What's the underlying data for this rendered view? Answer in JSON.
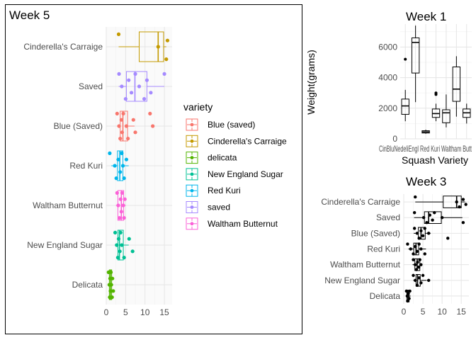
{
  "chart_data": [
    {
      "id": "week5",
      "type": "boxplot",
      "title": "Week 5",
      "orientation": "horizontal",
      "xlabel": "",
      "ylabel": "",
      "xlim": [
        0,
        17
      ],
      "x_ticks": [
        0,
        5,
        10,
        15
      ],
      "grid": true,
      "categories": [
        "Cinderella's Carraige",
        "Saved",
        "Blue (Saved)",
        "Red Kuri",
        "Waltham Butternut",
        "New England Sugar",
        "Delicata"
      ],
      "legend": {
        "title": "variety",
        "placement": "right",
        "entries": [
          {
            "label": "Blue (saved)",
            "color": "#F8766D"
          },
          {
            "label": "Cinderella's Carraige",
            "color": "#C49A00"
          },
          {
            "label": "delicata",
            "color": "#53B400"
          },
          {
            "label": "New England Sugar",
            "color": "#00C094"
          },
          {
            "label": "Red Kuri",
            "color": "#00B6EB"
          },
          {
            "label": "saved",
            "color": "#A58AFF"
          },
          {
            "label": "Waltham Butternut",
            "color": "#FB61D7"
          }
        ]
      },
      "series": [
        {
          "category": "Cinderella's Carraige",
          "color": "#C49A00",
          "q1": 8.5,
          "median": 13.4,
          "q3": 14.8,
          "whisker_low": 3.2,
          "whisker_high": 15.5,
          "points": [
            3.2,
            13.4,
            15.5,
            15.8
          ]
        },
        {
          "category": "Saved",
          "color": "#A58AFF",
          "q1": 5.2,
          "median": 7.4,
          "q3": 10.5,
          "whisker_low": 3.2,
          "whisker_high": 15.0,
          "points": [
            3.3,
            4.0,
            5.0,
            5.8,
            6.5,
            7.5,
            8.5,
            9.8,
            10.5,
            11.5,
            15.0
          ]
        },
        {
          "category": "Blue (Saved)",
          "color": "#F8766D",
          "q1": 3.6,
          "median": 4.3,
          "q3": 5.5,
          "whisker_low": 2.8,
          "whisker_high": 7.3,
          "points": [
            2.8,
            3.3,
            3.6,
            3.9,
            4.1,
            4.4,
            5.2,
            5.6,
            7.0,
            7.5,
            11.3,
            12.0
          ]
        },
        {
          "category": "Red Kuri",
          "color": "#00B6EB",
          "q1": 2.9,
          "median": 3.5,
          "q3": 4.3,
          "whisker_low": 1.3,
          "whisker_high": 5.8,
          "points": [
            0.9,
            2.2,
            2.6,
            3.1,
            3.6,
            4.0,
            4.3,
            4.6,
            5.2
          ]
        },
        {
          "category": "Waltham Butternut",
          "color": "#FB61D7",
          "q1": 3.0,
          "median": 3.9,
          "q3": 4.5,
          "whisker_low": 2.5,
          "whisker_high": 5.0,
          "points": [
            2.8,
            3.1,
            3.4,
            3.7,
            3.9,
            4.1,
            4.4,
            4.6,
            4.8
          ]
        },
        {
          "category": "New England Sugar",
          "color": "#00C094",
          "q1": 3.0,
          "median": 3.4,
          "q3": 4.4,
          "whisker_low": 2.3,
          "whisker_high": 5.8,
          "points": [
            2.3,
            2.7,
            3.0,
            3.2,
            3.5,
            3.7,
            4.0,
            4.6,
            5.9,
            6.8
          ]
        },
        {
          "category": "Delicata",
          "color": "#53B400",
          "q1": 0.8,
          "median": 1.1,
          "q3": 1.4,
          "whisker_low": 0.6,
          "whisker_high": 1.8,
          "points": [
            0.6,
            0.8,
            0.9,
            1.0,
            1.1,
            1.2,
            1.3,
            1.5,
            1.6,
            1.8
          ]
        }
      ]
    },
    {
      "id": "week1",
      "type": "boxplot",
      "title": "Week 1",
      "orientation": "vertical",
      "xlabel": "Squash Variety",
      "ylabel": "Weight(grams)",
      "ylim": [
        0,
        7500
      ],
      "y_ticks": [
        0,
        2000,
        4000,
        6000
      ],
      "grid": true,
      "x_tick_labels_overlapping": "CinBluNedeliEngl Red Kuri Waltham Butt",
      "categories": [
        "Cinderella's Carraige",
        "Blue (Saved)",
        "Delicata",
        "New England Sugar",
        "Red Kuri",
        "Saved",
        "Waltham Butternut"
      ],
      "series": [
        {
          "category": "Cinderella's Carraige",
          "q1": 1600,
          "median": 2150,
          "q3": 2600,
          "whisker_low": 1150,
          "whisker_high": 3200,
          "points": [
            5200
          ]
        },
        {
          "category": "Blue (Saved)",
          "q1": 4300,
          "median": 6300,
          "q3": 6600,
          "whisker_low": 2400,
          "whisker_high": 7400,
          "points": []
        },
        {
          "category": "Delicata",
          "q1": 380,
          "median": 450,
          "q3": 530,
          "whisker_low": 330,
          "whisker_high": 600,
          "points": []
        },
        {
          "category": "New England Sugar",
          "q1": 1400,
          "median": 1650,
          "q3": 1950,
          "whisker_low": 1150,
          "whisker_high": 2300,
          "points": [
            2900,
            3000
          ]
        },
        {
          "category": "Red Kuri",
          "q1": 1050,
          "median": 1700,
          "q3": 1900,
          "whisker_low": 750,
          "whisker_high": 2900,
          "points": []
        },
        {
          "category": "Saved",
          "q1": 2450,
          "median": 3250,
          "q3": 4700,
          "whisker_low": 1450,
          "whisker_high": 5400,
          "points": []
        },
        {
          "category": "Waltham Butternut",
          "q1": 1400,
          "median": 1700,
          "q3": 1950,
          "whisker_low": 1000,
          "whisker_high": 2300,
          "points": []
        }
      ]
    },
    {
      "id": "week3",
      "type": "boxplot",
      "title": "Week 3",
      "orientation": "horizontal",
      "xlabel": "",
      "ylabel": "",
      "xlim": [
        0,
        17
      ],
      "x_ticks": [
        0,
        5,
        10,
        15
      ],
      "grid": true,
      "categories": [
        "Cinderella's Carraige",
        "Saved",
        "Blue (Saved)",
        "Red Kuri",
        "Waltham Butternut",
        "New England Sugar",
        "Delicata"
      ],
      "series": [
        {
          "category": "Cinderella's Carraige",
          "q1": 10.3,
          "median": 13.8,
          "q3": 15.0,
          "whisker_low": 3.0,
          "whisker_high": 16.0,
          "points": [
            3.0,
            13.8,
            14.5,
            15.5,
            16.2
          ]
        },
        {
          "category": "Saved",
          "q1": 5.4,
          "median": 6.5,
          "q3": 9.8,
          "whisker_low": 2.7,
          "whisker_high": 15.3,
          "points": [
            2.8,
            5.2,
            6.0,
            6.8,
            7.5,
            8.0,
            10.0,
            15.5
          ]
        },
        {
          "category": "Blue (Saved)",
          "q1": 3.8,
          "median": 4.5,
          "q3": 5.6,
          "whisker_low": 2.6,
          "whisker_high": 7.0,
          "points": [
            2.8,
            3.5,
            4.0,
            4.5,
            5.0,
            5.5,
            6.5,
            11.5
          ]
        },
        {
          "category": "Red Kuri",
          "q1": 2.6,
          "median": 3.2,
          "q3": 3.9,
          "whisker_low": 1.2,
          "whisker_high": 5.8,
          "points": [
            1.0,
            1.8,
            2.5,
            3.0,
            3.5,
            4.0,
            4.5,
            5.5
          ]
        },
        {
          "category": "Waltham Butternut",
          "q1": 2.9,
          "median": 3.5,
          "q3": 4.2,
          "whisker_low": 2.3,
          "whisker_high": 4.8,
          "points": [
            2.5,
            3.0,
            3.3,
            3.6,
            3.9,
            4.2,
            4.5
          ]
        },
        {
          "category": "New England Sugar",
          "q1": 3.2,
          "median": 3.6,
          "q3": 4.3,
          "whisker_low": 2.5,
          "whisker_high": 6.0,
          "points": [
            2.5,
            3.0,
            3.5,
            4.0,
            4.5,
            5.0,
            6.5
          ]
        },
        {
          "category": "Delicata",
          "q1": 0.8,
          "median": 1.1,
          "q3": 1.4,
          "whisker_low": 0.6,
          "whisker_high": 1.8,
          "points": [
            0.7,
            0.9,
            1.0,
            1.2,
            1.4,
            1.6
          ]
        }
      ]
    }
  ]
}
